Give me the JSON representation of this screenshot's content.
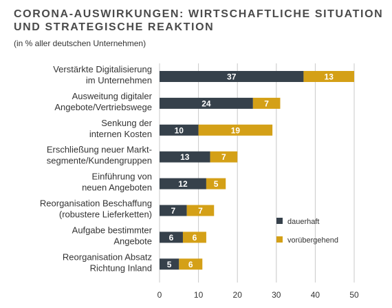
{
  "chart_data": {
    "type": "bar",
    "orientation": "horizontal",
    "stacked": true,
    "title": [
      "CORONA-AUSWIRKUNGEN: WIRTSCHAFTLICHE SITUATION",
      "UND STRATEGISCHE REAKTION"
    ],
    "subtitle": "(in % aller deutschen Unternehmen)",
    "categories": [
      [
        "Verstärkte Digitalisierung",
        "im Unternehmen"
      ],
      [
        "Ausweitung digitaler",
        "Angebote/Vertriebswege"
      ],
      [
        "Senkung der",
        "internen Kosten"
      ],
      [
        "Erschließung neuer Markt-",
        "segmente/Kundengruppen"
      ],
      [
        "Einführung von",
        "neuen Angeboten"
      ],
      [
        "Reorganisation Beschaffung",
        "(robustere Lieferketten)"
      ],
      [
        "Aufgabe bestimmter",
        "Angebote"
      ],
      [
        "Reorganisation Absatz",
        "Richtung Inland"
      ]
    ],
    "series": [
      {
        "name": "dauerhaft",
        "color": "#36414b",
        "values": [
          37,
          24,
          10,
          13,
          12,
          7,
          6,
          5
        ]
      },
      {
        "name": "vorübergehend",
        "color": "#d4a017",
        "values": [
          13,
          7,
          19,
          7,
          5,
          7,
          6,
          6
        ]
      }
    ],
    "xlim": [
      0,
      50
    ],
    "xticks": [
      0,
      10,
      20,
      30,
      40,
      50
    ],
    "grid": true,
    "legend": "right"
  }
}
